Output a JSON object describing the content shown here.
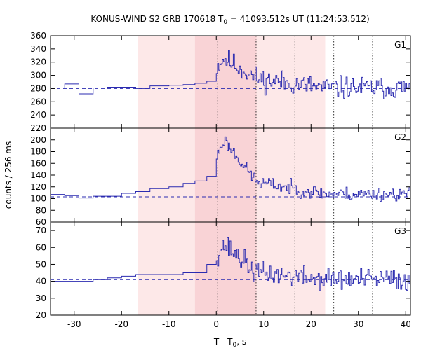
{
  "chart_data": {
    "type": "line",
    "title_prefix": "KONUS-WIND S2 GRB 170618 T",
    "title_sub": "0",
    "title_suffix": " = 41093.512s UT (11:24:53.512)",
    "xlabel_prefix": "T - T",
    "xlabel_sub": "0",
    "xlabel_suffix": ", s",
    "ylabel": "counts / 256 ms",
    "xlim": [
      -35,
      41
    ],
    "xticks": [
      -30,
      -20,
      -10,
      0,
      10,
      20,
      30,
      40
    ],
    "shaded_outer": [
      -16.5,
      23
    ],
    "shaded_inner": [
      -4.5,
      8.5
    ],
    "vlines": [
      0.3,
      8.4,
      16.6,
      24.8,
      33.0
    ],
    "colors": {
      "series": "#2b2bb0",
      "background": "#000000",
      "shade_outer": "#fde8e8",
      "shade_inner": "#f9d3d6",
      "frame": "#000000"
    },
    "panels": [
      {
        "name": "G1",
        "ylim": [
          220,
          360
        ],
        "yticks": [
          220,
          240,
          260,
          280,
          300,
          320,
          340,
          360
        ],
        "background_level": 280,
        "segments": [
          [
            -35,
            -32,
            281
          ],
          [
            -32,
            -29,
            287
          ],
          [
            -29,
            -26,
            272
          ],
          [
            -26,
            -23,
            281
          ],
          [
            -23,
            -20,
            282
          ],
          [
            -20,
            -17,
            282
          ],
          [
            -17,
            -14,
            280
          ],
          [
            -14,
            -10,
            284
          ],
          [
            -10,
            -7,
            285
          ],
          [
            -7,
            -4.5,
            286
          ],
          [
            -4.5,
            -2,
            288
          ],
          [
            -2,
            0,
            291
          ]
        ],
        "burst_peak": 326,
        "burst_decay_end": 295,
        "tail_level": 281,
        "noise_amp": 13,
        "seed": 11
      },
      {
        "name": "G2",
        "ylim": [
          60,
          220
        ],
        "yticks": [
          60,
          80,
          100,
          120,
          140,
          160,
          180,
          200
        ],
        "background_level": 103,
        "segments": [
          [
            -35,
            -32,
            107
          ],
          [
            -32,
            -29,
            105
          ],
          [
            -29,
            -26,
            101
          ],
          [
            -26,
            -23,
            104
          ],
          [
            -23,
            -20,
            104
          ],
          [
            -20,
            -17,
            109
          ],
          [
            -17,
            -14,
            112
          ],
          [
            -14,
            -10,
            117
          ],
          [
            -10,
            -7,
            120
          ],
          [
            -7,
            -4.5,
            126
          ],
          [
            -4.5,
            -2,
            130
          ],
          [
            -2,
            0,
            138
          ]
        ],
        "burst_peak": 200,
        "burst_decay_end": 128,
        "tail_level": 108,
        "noise_amp": 9,
        "seed": 23
      },
      {
        "name": "G3",
        "ylim": [
          20,
          75
        ],
        "yticks": [
          20,
          30,
          40,
          50,
          60,
          70
        ],
        "background_level": 41,
        "segments": [
          [
            -35,
            -32,
            40
          ],
          [
            -32,
            -29,
            40
          ],
          [
            -29,
            -26,
            40
          ],
          [
            -26,
            -23,
            41
          ],
          [
            -23,
            -20,
            42
          ],
          [
            -20,
            -17,
            43
          ],
          [
            -17,
            -14,
            44
          ],
          [
            -14,
            -10,
            44
          ],
          [
            -10,
            -7,
            44
          ],
          [
            -7,
            -4.5,
            45
          ],
          [
            -4.5,
            -2,
            45
          ],
          [
            -2,
            0,
            50
          ]
        ],
        "burst_peak": 62,
        "burst_decay_end": 45,
        "tail_level": 41,
        "noise_amp": 5,
        "seed": 37
      }
    ]
  }
}
